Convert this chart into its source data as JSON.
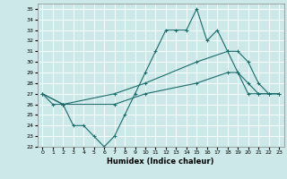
{
  "xlabel": "Humidex (Indice chaleur)",
  "bg_color": "#cce8e8",
  "grid_color": "#ffffff",
  "line_color": "#1a6b6b",
  "xlim": [
    -0.5,
    23.5
  ],
  "ylim": [
    22,
    35.5
  ],
  "yticks": [
    22,
    23,
    24,
    25,
    26,
    27,
    28,
    29,
    30,
    31,
    32,
    33,
    34,
    35
  ],
  "xticks": [
    0,
    1,
    2,
    3,
    4,
    5,
    6,
    7,
    8,
    9,
    10,
    11,
    12,
    13,
    14,
    15,
    16,
    17,
    18,
    19,
    20,
    21,
    22,
    23
  ],
  "line1_x": [
    0,
    1,
    2,
    3,
    4,
    5,
    6,
    7,
    8,
    9,
    10,
    11,
    12,
    13,
    14,
    15,
    16,
    17,
    18,
    19,
    20,
    21,
    22,
    23
  ],
  "line1_y": [
    27,
    26,
    26,
    24,
    24,
    23,
    22,
    23,
    25,
    27,
    29,
    31,
    33,
    33,
    33,
    35,
    32,
    33,
    31,
    29,
    27,
    27,
    27,
    27
  ],
  "line2_x": [
    0,
    2,
    7,
    10,
    15,
    18,
    19,
    20,
    21,
    22,
    23
  ],
  "line2_y": [
    27,
    26,
    27,
    28,
    30,
    31,
    31,
    30,
    28,
    27,
    27
  ],
  "line3_x": [
    0,
    2,
    7,
    10,
    15,
    18,
    19,
    20,
    21,
    22,
    23
  ],
  "line3_y": [
    27,
    26,
    26,
    27,
    28,
    29,
    29,
    28,
    27,
    27,
    27
  ]
}
